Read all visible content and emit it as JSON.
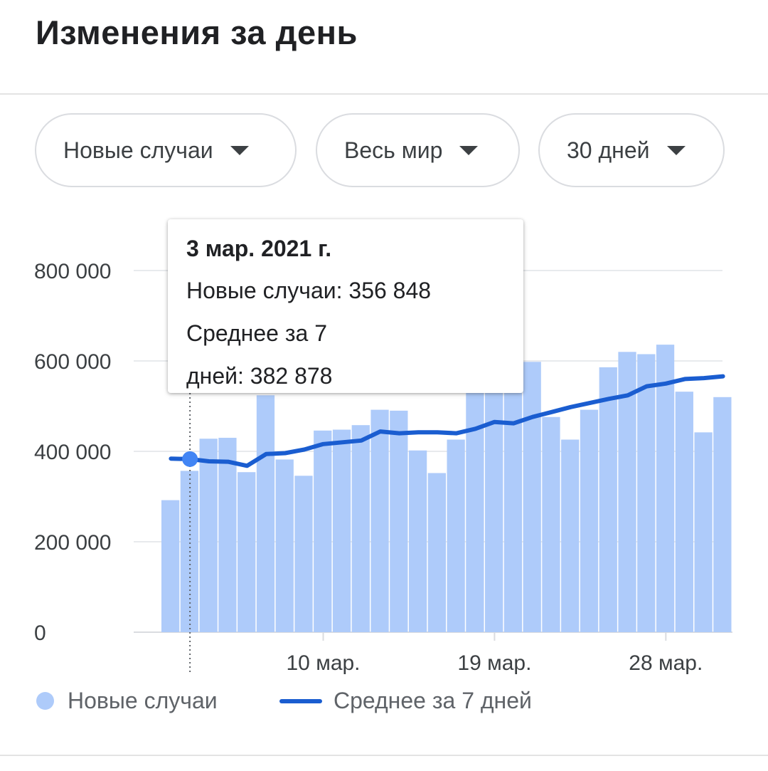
{
  "header": {
    "title": "Изменения за день"
  },
  "filters": {
    "metric": "Новые случаи",
    "region": "Весь мир",
    "range": "30 дней"
  },
  "tooltip": {
    "date": "3 мар. 2021 г.",
    "line1": "Новые случаи: 356 848",
    "line2": "Среднее за 7",
    "line3": "дней: 382 878"
  },
  "legend": {
    "bars_label": "Новые случаи",
    "line_label": "Среднее за 7 дней"
  },
  "colors": {
    "bar": "#aecbfa",
    "line": "#1a5dd0",
    "highlight_point": "#4285f4"
  },
  "chart_data": {
    "type": "bar",
    "title": "",
    "xlabel": "",
    "ylabel": "",
    "x": [
      "2 мар.",
      "3 мар.",
      "4 мар.",
      "5 мар.",
      "6 мар.",
      "7 мар.",
      "8 мар.",
      "9 мар.",
      "10 мар.",
      "11 мар.",
      "12 мар.",
      "13 мар.",
      "14 мар.",
      "15 мар.",
      "16 мар.",
      "17 мар.",
      "18 мар.",
      "19 мар.",
      "20 мар.",
      "21 мар.",
      "22 мар.",
      "23 мар.",
      "24 мар.",
      "25 мар.",
      "26 мар.",
      "27 мар.",
      "28 мар.",
      "29 мар.",
      "30 мар.",
      "31 мар."
    ],
    "x_ticks": [
      "10 мар.",
      "19 мар.",
      "28 мар."
    ],
    "y_ticks": [
      0,
      200000,
      400000,
      600000,
      800000
    ],
    "y_tick_labels": [
      "0",
      "200 000",
      "400 000",
      "600 000",
      "800 000"
    ],
    "ylim": [
      0,
      800000
    ],
    "grid": true,
    "legend_position": "bottom-left",
    "highlighted": "3 мар.",
    "series": [
      {
        "name": "Новые случаи",
        "type": "bar",
        "values": [
          292000,
          356848,
          428000,
          430000,
          354000,
          524000,
          382000,
          346000,
          446000,
          448000,
          458000,
          492000,
          490000,
          402000,
          352000,
          426000,
          555000,
          556000,
          552000,
          598000,
          476000,
          426000,
          492000,
          586000,
          620000,
          615000,
          636000,
          532000,
          442000,
          520000
        ]
      },
      {
        "name": "Среднее за 7 дней",
        "type": "line",
        "values": [
          384000,
          382878,
          378000,
          377000,
          368000,
          394000,
          396000,
          404000,
          416000,
          420000,
          424000,
          444000,
          440000,
          442000,
          442000,
          440000,
          450000,
          465000,
          462000,
          476000,
          487000,
          498000,
          507000,
          516000,
          524000,
          544000,
          550000,
          560000,
          562000,
          566000
        ]
      }
    ]
  }
}
